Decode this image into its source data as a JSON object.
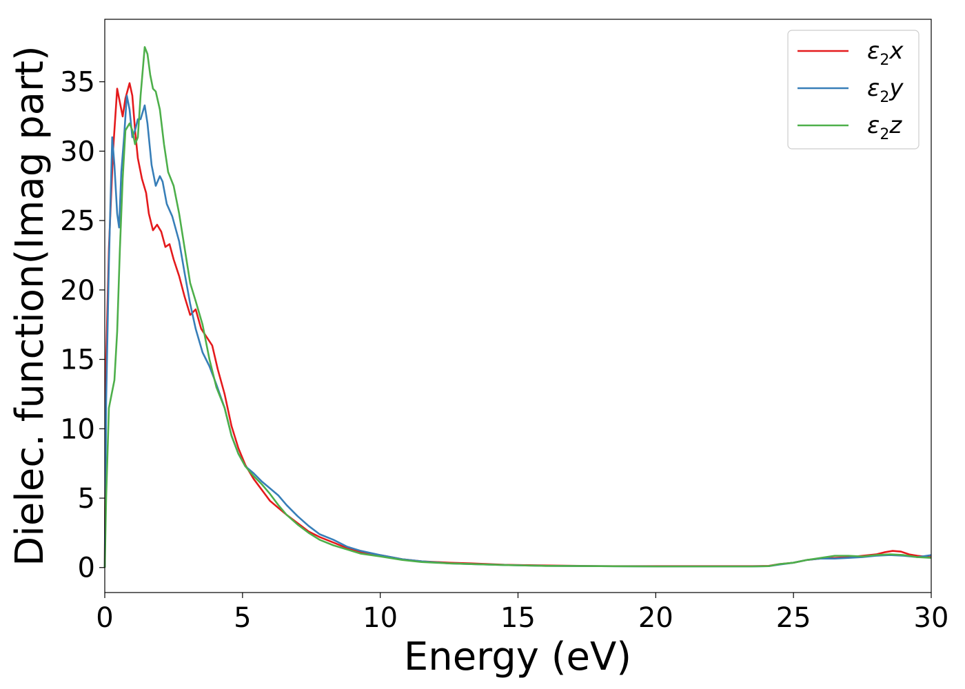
{
  "chart_data": {
    "type": "line",
    "title": "",
    "xlabel": "Energy (eV)",
    "ylabel": "Dielec. function(Imag part)",
    "xlim": [
      0,
      30
    ],
    "ylim": [
      -1.8,
      39.5
    ],
    "xticks": [
      0,
      5,
      10,
      15,
      20,
      25,
      30
    ],
    "yticks": [
      0,
      5,
      10,
      15,
      20,
      25,
      30,
      35
    ],
    "grid": false,
    "legend": "top-right",
    "series": [
      {
        "name": "ε₂x",
        "legend_base": "ε",
        "legend_sub": "2",
        "legend_tail": "x",
        "color": "#e41a1c",
        "x": [
          0,
          0.05,
          0.15,
          0.3,
          0.45,
          0.55,
          0.65,
          0.75,
          0.9,
          1.0,
          1.1,
          1.2,
          1.35,
          1.5,
          1.6,
          1.75,
          1.9,
          2.05,
          2.2,
          2.35,
          2.5,
          2.7,
          2.9,
          3.1,
          3.3,
          3.5,
          3.7,
          3.9,
          4.1,
          4.35,
          4.6,
          4.85,
          5.1,
          5.4,
          5.7,
          6.0,
          6.3,
          6.6,
          7.0,
          7.4,
          7.8,
          8.3,
          8.8,
          9.3,
          10.0,
          10.8,
          11.5,
          12.5,
          13.3,
          14.5,
          16,
          18,
          20,
          22,
          23.5,
          24.1,
          24.5,
          25.0,
          25.5,
          26.0,
          26.5,
          27.0,
          27.5,
          28.0,
          28.3,
          28.6,
          28.9,
          29.2,
          29.5,
          30.0
        ],
        "values": [
          0,
          15,
          23,
          30,
          34.5,
          33.5,
          32.5,
          33.8,
          34.9,
          34,
          31.5,
          29.5,
          28,
          27,
          25.5,
          24.3,
          24.7,
          24.2,
          23.1,
          23.3,
          22.2,
          21,
          19.5,
          18.2,
          18.6,
          17.2,
          16.6,
          16,
          14.3,
          12.5,
          10.2,
          8.6,
          7.4,
          6.4,
          5.6,
          4.8,
          4.3,
          3.8,
          3.2,
          2.6,
          2.2,
          1.8,
          1.4,
          1.1,
          0.9,
          0.6,
          0.45,
          0.35,
          0.3,
          0.2,
          0.15,
          0.1,
          0.1,
          0.1,
          0.1,
          0.12,
          0.25,
          0.35,
          0.55,
          0.65,
          0.7,
          0.75,
          0.85,
          0.95,
          1.1,
          1.2,
          1.15,
          0.95,
          0.85,
          0.75
        ]
      },
      {
        "name": "ε₂y",
        "legend_base": "ε",
        "legend_sub": "2",
        "legend_tail": "y",
        "color": "#377eb8",
        "x": [
          0,
          0.05,
          0.15,
          0.27,
          0.35,
          0.45,
          0.52,
          0.6,
          0.7,
          0.8,
          0.9,
          1.0,
          1.1,
          1.2,
          1.3,
          1.45,
          1.55,
          1.7,
          1.85,
          2.0,
          2.1,
          2.25,
          2.45,
          2.7,
          2.9,
          3.1,
          3.3,
          3.55,
          3.8,
          4.05,
          4.35,
          4.6,
          4.85,
          5.1,
          5.4,
          5.7,
          6.0,
          6.3,
          6.6,
          7.0,
          7.4,
          7.8,
          8.3,
          8.8,
          9.3,
          10.0,
          10.8,
          11.5,
          12.5,
          13.3,
          14.5,
          16,
          18,
          20,
          22,
          23.5,
          24.1,
          24.5,
          25.0,
          25.5,
          26.0,
          26.5,
          27.0,
          27.5,
          28.0,
          28.5,
          29.0,
          29.5,
          30.0
        ],
        "values": [
          0,
          12,
          22,
          31,
          29,
          25.5,
          24.5,
          28.5,
          31,
          34,
          33,
          31,
          31.5,
          32.3,
          32.3,
          33.3,
          32,
          29,
          27.5,
          28.2,
          27.8,
          26.2,
          25.3,
          23.5,
          21.2,
          19,
          17.2,
          15.5,
          14.5,
          13.2,
          11.5,
          9.5,
          8.2,
          7.3,
          6.8,
          6.2,
          5.7,
          5.2,
          4.5,
          3.7,
          3.0,
          2.4,
          2.0,
          1.5,
          1.2,
          0.9,
          0.6,
          0.45,
          0.3,
          0.25,
          0.18,
          0.12,
          0.1,
          0.08,
          0.08,
          0.08,
          0.1,
          0.22,
          0.35,
          0.55,
          0.65,
          0.65,
          0.7,
          0.75,
          0.85,
          0.9,
          0.85,
          0.75,
          0.9
        ]
      },
      {
        "name": "ε₂z",
        "legend_base": "ε",
        "legend_sub": "2",
        "legend_tail": "z",
        "color": "#4daf4a",
        "x": [
          0,
          0.05,
          0.15,
          0.25,
          0.35,
          0.45,
          0.55,
          0.65,
          0.75,
          0.9,
          1.0,
          1.1,
          1.2,
          1.3,
          1.45,
          1.55,
          1.65,
          1.75,
          1.85,
          2.0,
          2.15,
          2.3,
          2.5,
          2.7,
          2.9,
          3.1,
          3.3,
          3.55,
          3.8,
          4.05,
          4.35,
          4.6,
          4.85,
          5.1,
          5.4,
          5.7,
          6.0,
          6.3,
          6.6,
          7.0,
          7.4,
          7.8,
          8.3,
          8.8,
          9.3,
          10.0,
          10.8,
          11.5,
          12.5,
          13.3,
          14.5,
          16,
          18,
          20,
          22,
          23.5,
          24.1,
          24.5,
          25.0,
          25.5,
          26.0,
          26.5,
          27.0,
          27.5,
          28.0,
          28.5,
          29.0,
          29.5,
          30.0
        ],
        "values": [
          0,
          5,
          11.5,
          12.5,
          13.5,
          17,
          23,
          28,
          31.5,
          32,
          31.5,
          30.5,
          31,
          34,
          37.5,
          37,
          35.5,
          34.5,
          34.3,
          33,
          30.5,
          28.5,
          27.5,
          25.5,
          23,
          20.5,
          19.2,
          17.5,
          15,
          13,
          11.5,
          9.5,
          8.2,
          7.3,
          6.6,
          6.0,
          5.3,
          4.5,
          3.8,
          3.1,
          2.5,
          2.0,
          1.6,
          1.3,
          1.0,
          0.8,
          0.55,
          0.4,
          0.3,
          0.25,
          0.18,
          0.12,
          0.1,
          0.08,
          0.08,
          0.08,
          0.1,
          0.25,
          0.35,
          0.55,
          0.7,
          0.85,
          0.85,
          0.8,
          0.9,
          0.95,
          0.9,
          0.75,
          0.7
        ]
      }
    ]
  }
}
